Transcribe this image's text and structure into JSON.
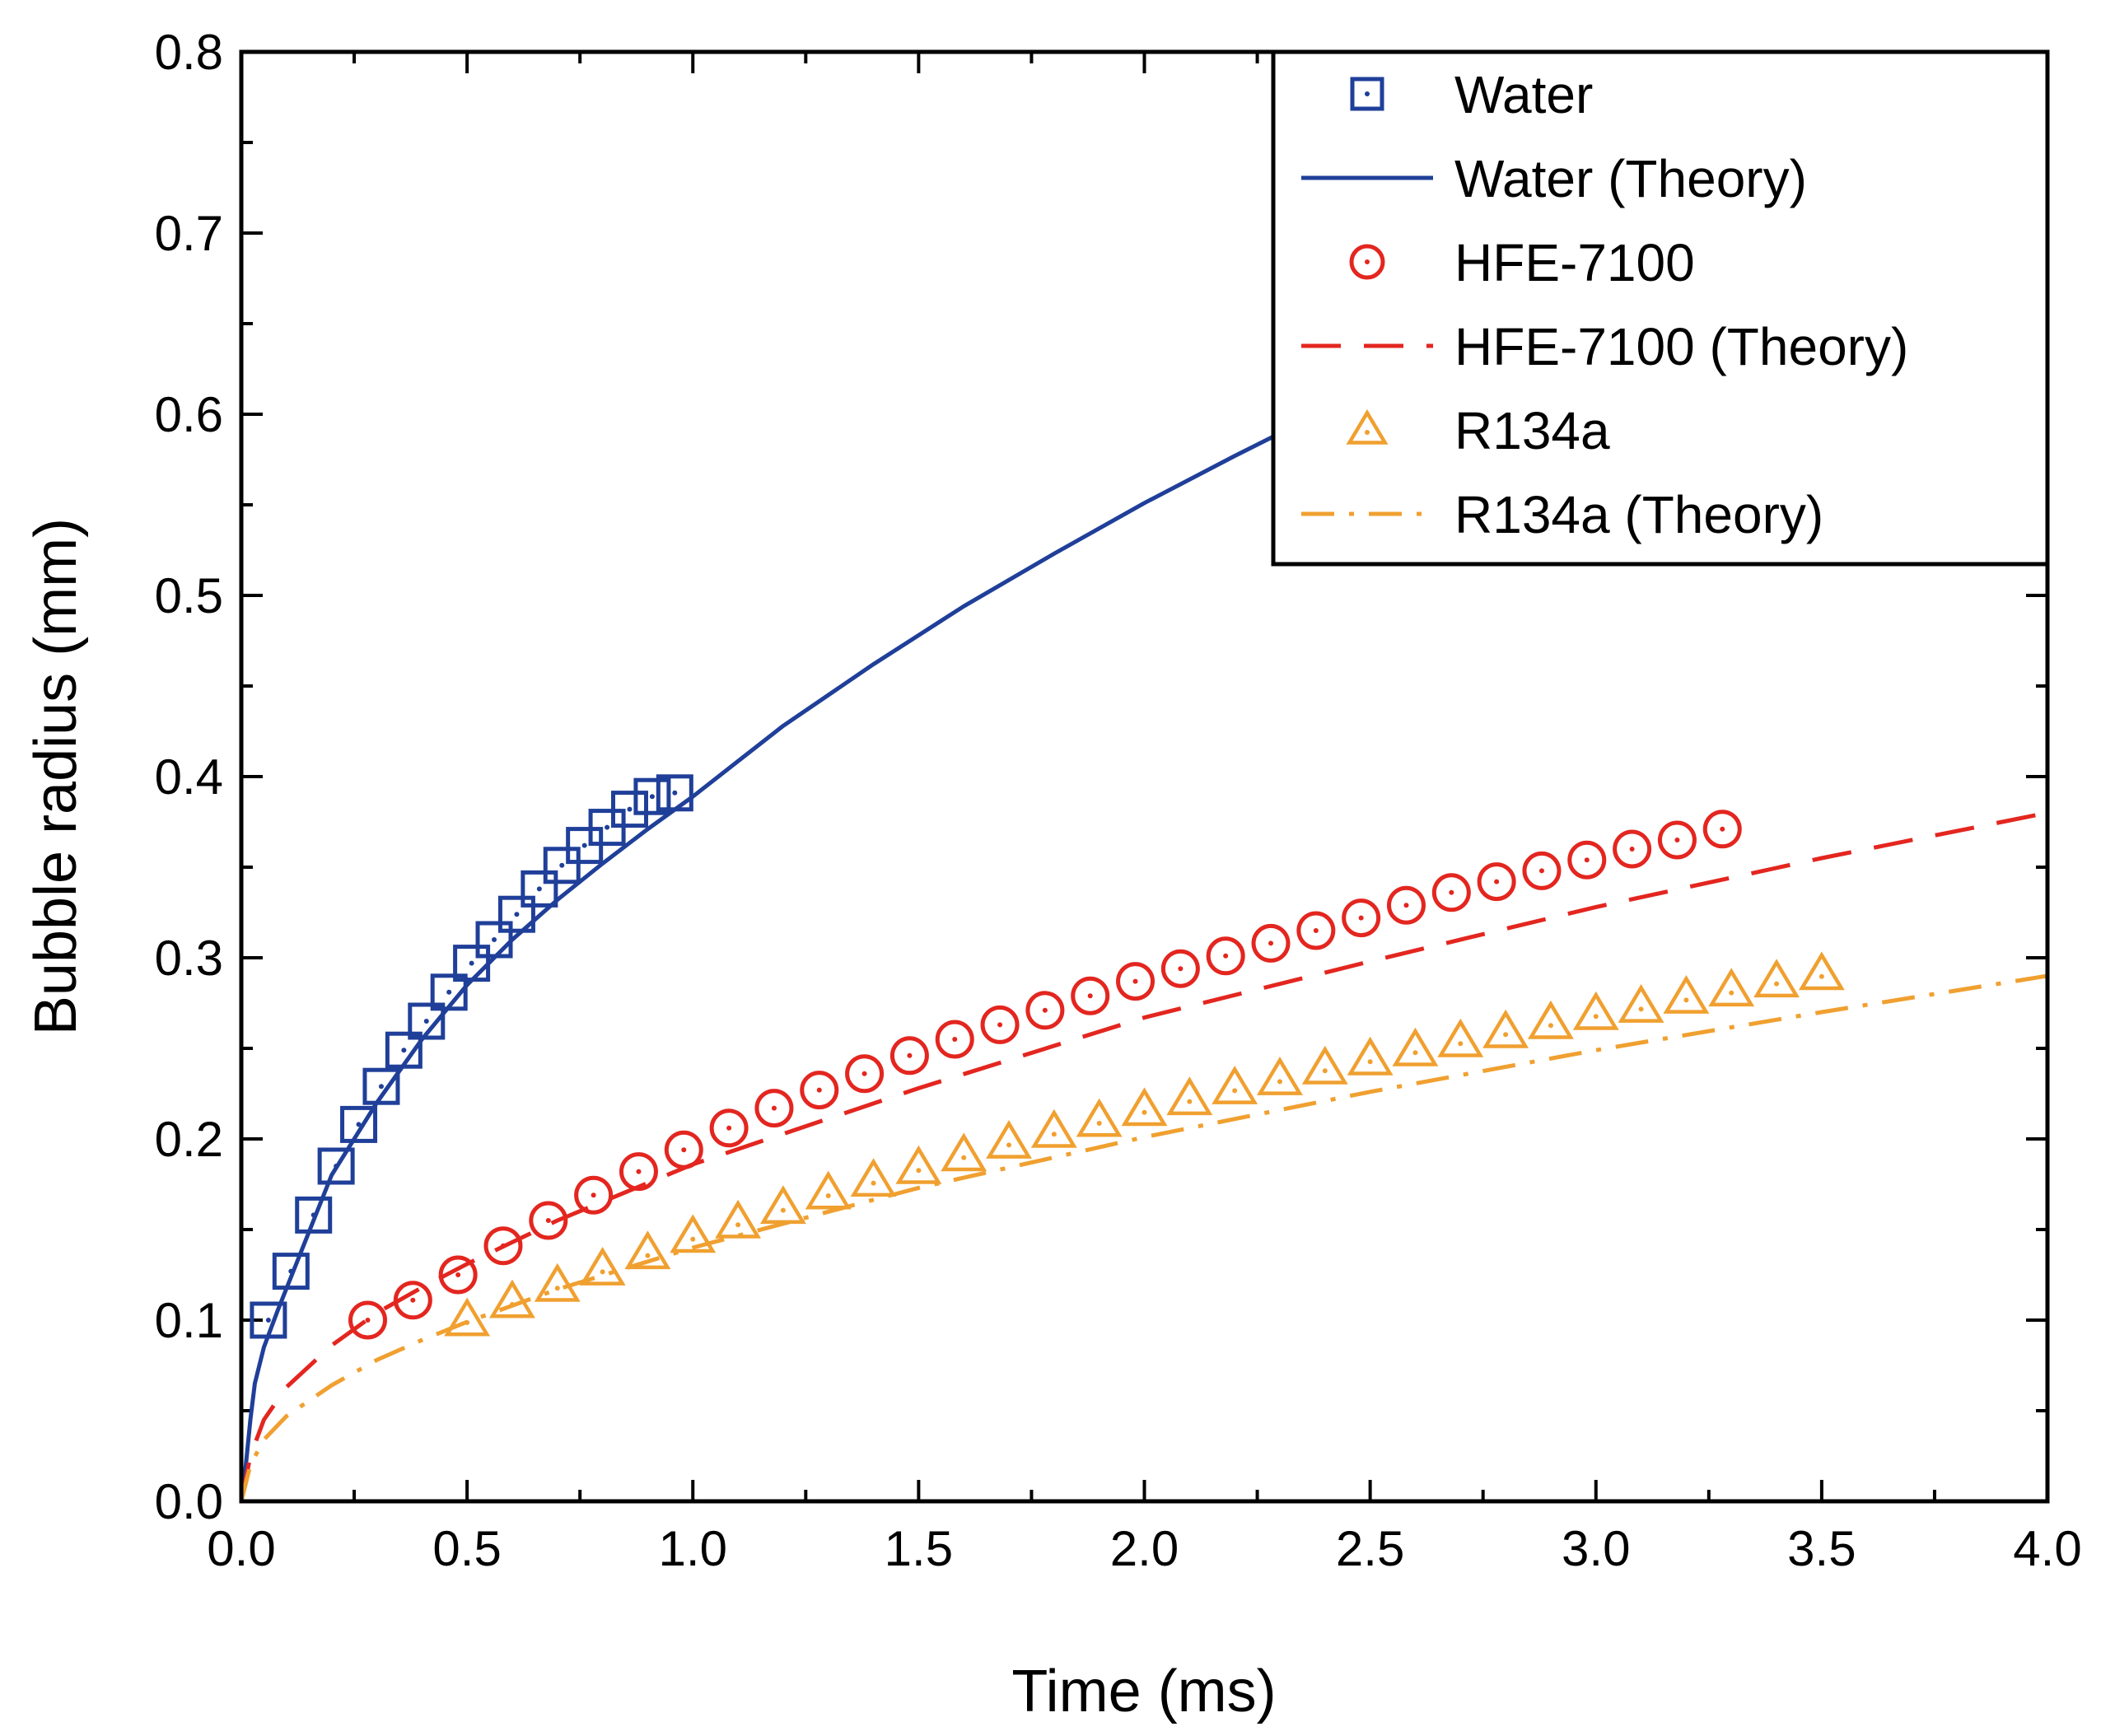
{
  "chart_data": {
    "type": "scatter",
    "xlabel": "Time (ms)",
    "ylabel": "Bubble radius (mm)",
    "xlim": [
      0.0,
      4.0
    ],
    "ylim": [
      0.0,
      0.8
    ],
    "xticks": [
      "0.0",
      "0.5",
      "1.0",
      "1.5",
      "2.0",
      "2.5",
      "3.0",
      "3.5",
      "4.0"
    ],
    "yticks": [
      "0.0",
      "0.1",
      "0.2",
      "0.3",
      "0.4",
      "0.5",
      "0.6",
      "0.7",
      "0.8"
    ],
    "grid": false,
    "legend_position": "top-right",
    "series": [
      {
        "name": "Water",
        "kind": "markers",
        "marker": "square",
        "color": "#1f3f99",
        "x": [
          0.06,
          0.11,
          0.16,
          0.21,
          0.26,
          0.31,
          0.36,
          0.41,
          0.46,
          0.51,
          0.56,
          0.61,
          0.66,
          0.71,
          0.76,
          0.81,
          0.86,
          0.91,
          0.96
        ],
        "y": [
          0.1,
          0.127,
          0.158,
          0.185,
          0.208,
          0.229,
          0.249,
          0.265,
          0.281,
          0.297,
          0.31,
          0.324,
          0.338,
          0.351,
          0.362,
          0.372,
          0.382,
          0.389,
          0.391
        ]
      },
      {
        "name": "Water (Theory)",
        "kind": "line",
        "dash": "solid",
        "color": "#1f3f99",
        "x": [
          0.0,
          0.01,
          0.02,
          0.03,
          0.05,
          0.08,
          0.12,
          0.16,
          0.2,
          0.3,
          0.4,
          0.5,
          0.6,
          0.7,
          0.8,
          0.9,
          1.0,
          1.2,
          1.4,
          1.6,
          1.8,
          2.0,
          2.2,
          2.4,
          2.6
        ],
        "y": [
          0.0,
          0.02,
          0.045,
          0.065,
          0.085,
          0.105,
          0.13,
          0.155,
          0.18,
          0.22,
          0.255,
          0.285,
          0.31,
          0.332,
          0.352,
          0.371,
          0.389,
          0.428,
          0.462,
          0.494,
          0.523,
          0.551,
          0.577,
          0.602,
          0.621
        ]
      },
      {
        "name": "HFE-7100",
        "kind": "markers",
        "marker": "circle",
        "color": "#e3261f",
        "x": [
          0.28,
          0.38,
          0.48,
          0.58,
          0.68,
          0.78,
          0.88,
          0.98,
          1.08,
          1.18,
          1.28,
          1.38,
          1.48,
          1.58,
          1.68,
          1.78,
          1.88,
          1.98,
          2.08,
          2.18,
          2.28,
          2.38,
          2.48,
          2.58,
          2.68,
          2.78,
          2.88,
          2.98,
          3.08,
          3.18,
          3.28
        ],
        "y": [
          0.1,
          0.111,
          0.125,
          0.141,
          0.155,
          0.169,
          0.182,
          0.194,
          0.206,
          0.217,
          0.227,
          0.236,
          0.246,
          0.255,
          0.263,
          0.271,
          0.279,
          0.287,
          0.294,
          0.301,
          0.308,
          0.315,
          0.322,
          0.329,
          0.336,
          0.342,
          0.348,
          0.354,
          0.36,
          0.365,
          0.371
        ]
      },
      {
        "name": "HFE-7100 (Theory)",
        "kind": "line",
        "dash": "dashed",
        "color": "#e3261f",
        "x": [
          0.0,
          0.02,
          0.05,
          0.1,
          0.2,
          0.3,
          0.4,
          0.5,
          0.7,
          1.0,
          1.5,
          2.0,
          2.5,
          3.0,
          3.5,
          4.0
        ],
        "y": [
          0.0,
          0.025,
          0.045,
          0.063,
          0.086,
          0.104,
          0.118,
          0.131,
          0.155,
          0.186,
          0.228,
          0.267,
          0.298,
          0.328,
          0.355,
          0.38
        ]
      },
      {
        "name": "R134a",
        "kind": "markers",
        "marker": "triangle",
        "color": "#f0a030",
        "x": [
          0.5,
          0.6,
          0.7,
          0.8,
          0.9,
          1.0,
          1.1,
          1.2,
          1.3,
          1.4,
          1.5,
          1.6,
          1.7,
          1.8,
          1.9,
          2.0,
          2.1,
          2.2,
          2.3,
          2.4,
          2.5,
          2.6,
          2.7,
          2.8,
          2.9,
          3.0,
          3.1,
          3.2,
          3.3,
          3.4,
          3.5
        ],
        "y": [
          0.1,
          0.11,
          0.119,
          0.128,
          0.137,
          0.146,
          0.154,
          0.162,
          0.17,
          0.177,
          0.184,
          0.191,
          0.198,
          0.204,
          0.21,
          0.216,
          0.222,
          0.228,
          0.233,
          0.239,
          0.244,
          0.249,
          0.254,
          0.259,
          0.264,
          0.269,
          0.273,
          0.278,
          0.282,
          0.287,
          0.291
        ]
      },
      {
        "name": "R134a (Theory)",
        "kind": "line",
        "dash": "dash-dot",
        "color": "#f0a030",
        "x": [
          0.0,
          0.02,
          0.05,
          0.1,
          0.2,
          0.3,
          0.4,
          0.5,
          0.7,
          1.0,
          1.5,
          2.0,
          2.5,
          3.0,
          3.5,
          4.0
        ],
        "y": [
          0.0,
          0.02,
          0.034,
          0.047,
          0.064,
          0.078,
          0.089,
          0.099,
          0.117,
          0.14,
          0.173,
          0.201,
          0.226,
          0.249,
          0.27,
          0.29
        ]
      }
    ]
  }
}
